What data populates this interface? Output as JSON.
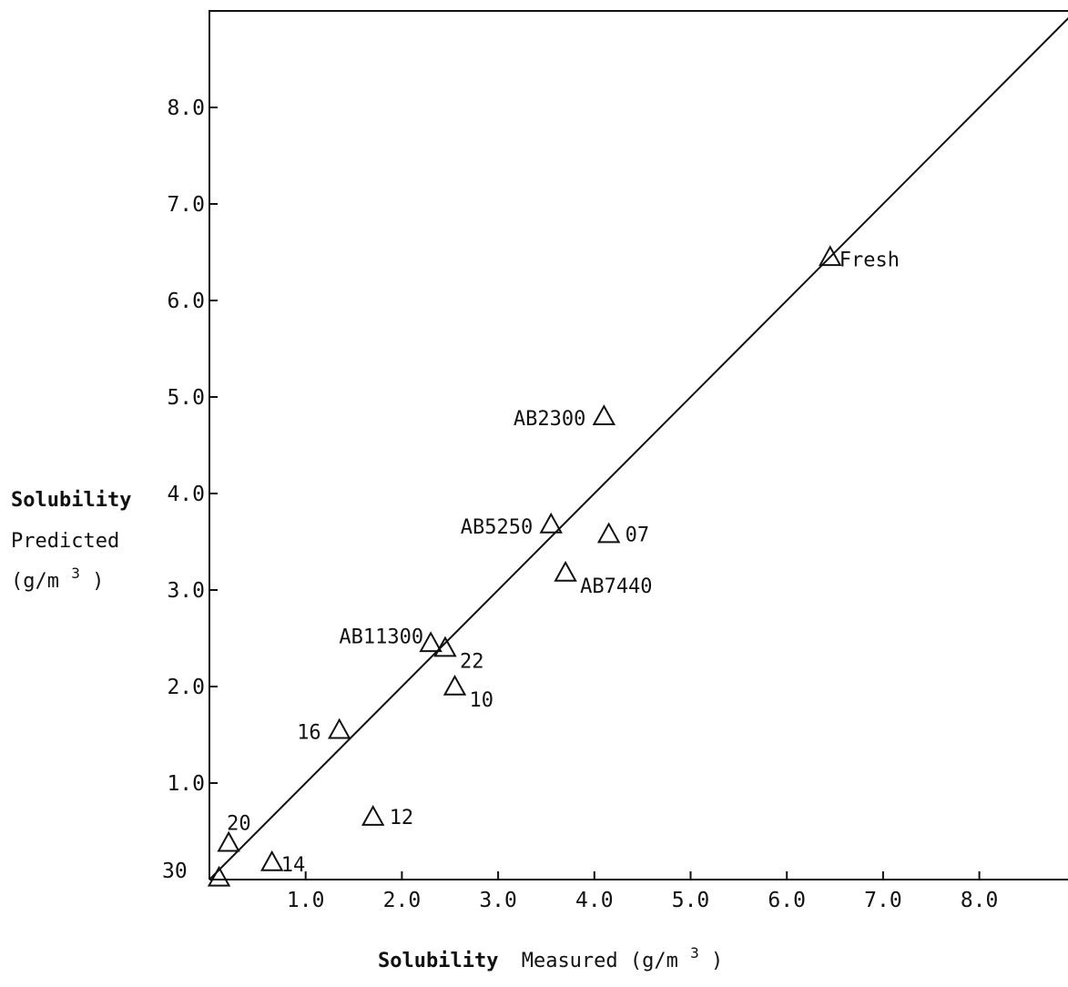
{
  "chart_data": {
    "type": "scatter",
    "title": "",
    "xlabel_bold": "Solubility",
    "xlabel_rest": "Measured (g/m",
    "xlabel_sup": "3",
    "xlabel_close": ")",
    "ylabel_line1": "Solubility",
    "ylabel_line2": "Predicted",
    "ylabel_line3": "(g/m",
    "ylabel_line3_sup": "3",
    "ylabel_line3_close": ")",
    "origin_label": "30",
    "xlim": [
      0,
      9.0
    ],
    "ylim": [
      0,
      9.0
    ],
    "x_ticks": [
      {
        "value": 1.0,
        "label": "1.0"
      },
      {
        "value": 2.0,
        "label": "2.0"
      },
      {
        "value": 3.0,
        "label": "3.0"
      },
      {
        "value": 4.0,
        "label": "4.0"
      },
      {
        "value": 5.0,
        "label": "5.0"
      },
      {
        "value": 6.0,
        "label": "6.0"
      },
      {
        "value": 7.0,
        "label": "7.0"
      },
      {
        "value": 8.0,
        "label": "8.0"
      }
    ],
    "y_ticks": [
      {
        "value": 1.0,
        "label": "1.0"
      },
      {
        "value": 2.0,
        "label": "2.0"
      },
      {
        "value": 3.0,
        "label": "3.0"
      },
      {
        "value": 4.0,
        "label": "4.0"
      },
      {
        "value": 5.0,
        "label": "5.0"
      },
      {
        "value": 6.0,
        "label": "6.0"
      },
      {
        "value": 7.0,
        "label": "7.0"
      },
      {
        "value": 8.0,
        "label": "8.0"
      }
    ],
    "grid": false,
    "marker": "open-triangle",
    "fit_line": {
      "from": [
        0,
        0
      ],
      "to": [
        9.0,
        9.0
      ]
    },
    "points": [
      {
        "label": "Fresh",
        "x": 6.45,
        "y": 6.45,
        "label_pos": "right-tight"
      },
      {
        "label": "AB2300",
        "x": 4.1,
        "y": 4.8,
        "label_pos": "left"
      },
      {
        "label": "AB5250",
        "x": 3.55,
        "y": 3.68,
        "label_pos": "left"
      },
      {
        "label": "07",
        "x": 4.15,
        "y": 3.58,
        "label_pos": "right"
      },
      {
        "label": "AB7440",
        "x": 3.7,
        "y": 3.18,
        "label_pos": "below-right"
      },
      {
        "label": "AB11300",
        "x": 2.3,
        "y": 2.45,
        "label_pos": "left-tight"
      },
      {
        "label": "22",
        "x": 2.45,
        "y": 2.4,
        "label_pos": "below-right"
      },
      {
        "label": "10",
        "x": 2.55,
        "y": 2.0,
        "label_pos": "below-right"
      },
      {
        "label": "16",
        "x": 1.35,
        "y": 1.55,
        "label_pos": "left"
      },
      {
        "label": "12",
        "x": 1.7,
        "y": 0.65,
        "label_pos": "right"
      },
      {
        "label": "20",
        "x": 0.2,
        "y": 0.38,
        "label_pos": "above-right"
      },
      {
        "label": "14",
        "x": 0.65,
        "y": 0.18,
        "label_pos": "right-tight"
      },
      {
        "label": "",
        "x": 0.1,
        "y": 0.02,
        "label_pos": "none"
      }
    ]
  }
}
